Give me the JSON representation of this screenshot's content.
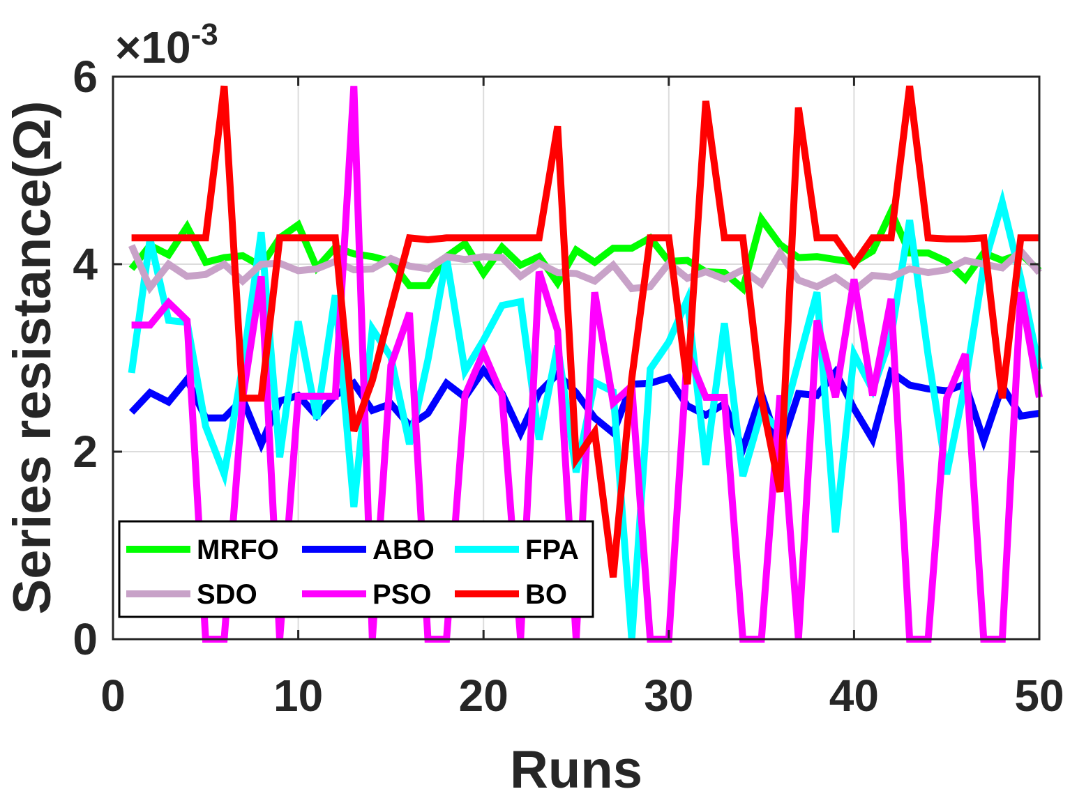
{
  "chart_data": {
    "type": "line",
    "title": "",
    "xlabel": "Runs",
    "ylabel": "Series resistance(Ω)",
    "exponent_label": "×10",
    "exponent_power": "-3",
    "xlim": [
      0,
      50
    ],
    "ylim": [
      0,
      6
    ],
    "xticks": [
      0,
      10,
      20,
      30,
      40,
      50
    ],
    "yticks": [
      0,
      2,
      4,
      6
    ],
    "xtick_labels": [
      "0",
      "10",
      "20",
      "30",
      "40",
      "50"
    ],
    "ytick_labels": [
      "0",
      "2",
      "4",
      "6"
    ],
    "grid": true,
    "legend_position": "bottom-left",
    "x": [
      1,
      2,
      3,
      4,
      5,
      6,
      7,
      8,
      9,
      10,
      11,
      12,
      13,
      14,
      15,
      16,
      17,
      18,
      19,
      20,
      21,
      22,
      23,
      24,
      25,
      26,
      27,
      28,
      29,
      30,
      31,
      32,
      33,
      34,
      35,
      36,
      37,
      38,
      39,
      40,
      41,
      42,
      43,
      44,
      45,
      46,
      47,
      48,
      49,
      50
    ],
    "series": [
      {
        "name": "MRFO",
        "color": "#00ff00",
        "values": [
          3.95,
          4.2,
          4.1,
          4.4,
          4.02,
          4.07,
          4.09,
          3.98,
          4.28,
          4.42,
          3.96,
          4.18,
          4.11,
          4.08,
          4.03,
          3.77,
          3.77,
          4.08,
          4.22,
          3.9,
          4.18,
          3.99,
          4.08,
          3.8,
          4.15,
          4.02,
          4.17,
          4.17,
          4.28,
          4.03,
          4.04,
          3.92,
          3.91,
          3.74,
          4.48,
          4.21,
          4.07,
          4.08,
          4.05,
          4.02,
          4.14,
          4.56,
          4.12,
          4.12,
          4.03,
          3.84,
          4.12,
          4.04,
          4.11,
          3.93
        ]
      },
      {
        "name": "ABO",
        "color": "#0000ff",
        "values": [
          2.42,
          2.63,
          2.53,
          2.77,
          2.36,
          2.36,
          2.56,
          2.08,
          2.54,
          2.6,
          2.38,
          2.6,
          2.73,
          2.44,
          2.51,
          2.28,
          2.41,
          2.73,
          2.58,
          2.87,
          2.62,
          2.2,
          2.63,
          2.83,
          2.63,
          2.36,
          2.2,
          2.72,
          2.73,
          2.79,
          2.49,
          2.39,
          2.51,
          2.03,
          2.62,
          2.02,
          2.62,
          2.6,
          2.85,
          2.46,
          2.13,
          2.85,
          2.71,
          2.67,
          2.65,
          2.72,
          2.12,
          2.7,
          2.38,
          2.41
        ]
      },
      {
        "name": "FPA",
        "color": "#00ffff",
        "values": [
          2.84,
          4.27,
          3.4,
          3.38,
          2.27,
          1.76,
          2.91,
          4.34,
          1.94,
          3.39,
          2.35,
          3.67,
          1.41,
          3.31,
          3.01,
          2.08,
          2.98,
          4.07,
          2.86,
          3.19,
          3.56,
          3.6,
          2.13,
          3.13,
          1.78,
          2.74,
          2.64,
          0.0,
          2.88,
          3.17,
          3.62,
          1.86,
          3.37,
          1.74,
          2.43,
          2.22,
          2.96,
          3.7,
          1.14,
          3.04,
          2.66,
          3.23,
          4.47,
          3.03,
          1.76,
          2.73,
          3.98,
          4.66,
          3.85,
          2.88
        ]
      },
      {
        "name": "SDO",
        "color": "#c8a2c8",
        "values": [
          4.2,
          3.75,
          4.0,
          3.87,
          3.89,
          4.0,
          3.82,
          4.0,
          4.01,
          3.93,
          3.95,
          4.03,
          3.94,
          3.95,
          4.06,
          3.98,
          3.95,
          4.08,
          4.05,
          4.08,
          4.07,
          3.87,
          4.01,
          3.91,
          3.9,
          3.82,
          3.99,
          3.74,
          3.76,
          4.01,
          3.85,
          3.92,
          3.84,
          3.94,
          3.79,
          4.12,
          3.83,
          3.76,
          3.86,
          3.72,
          3.88,
          3.86,
          3.95,
          3.91,
          3.94,
          4.04,
          4.0,
          3.96,
          4.14,
          3.91
        ]
      },
      {
        "name": "PSO",
        "color": "#ff00ff",
        "values": [
          3.35,
          3.35,
          3.59,
          3.4,
          0.0,
          0.0,
          2.57,
          3.87,
          0.0,
          2.59,
          2.59,
          2.59,
          5.9,
          0.0,
          2.92,
          3.48,
          0.0,
          0.0,
          2.6,
          3.06,
          2.6,
          0.0,
          3.92,
          3.29,
          0.0,
          3.7,
          2.52,
          2.7,
          0.0,
          0.0,
          3.06,
          2.58,
          2.58,
          0.0,
          0.0,
          2.6,
          0.0,
          3.4,
          2.58,
          3.84,
          2.6,
          3.63,
          0.0,
          0.0,
          2.57,
          3.04,
          0.0,
          0.0,
          3.7,
          2.58
        ]
      },
      {
        "name": "BO",
        "color": "#ff0000",
        "values": [
          4.28,
          4.28,
          4.28,
          4.28,
          4.28,
          5.9,
          2.57,
          2.57,
          4.28,
          4.28,
          4.28,
          4.28,
          2.22,
          2.76,
          3.53,
          4.28,
          4.26,
          4.28,
          4.28,
          4.28,
          4.28,
          4.28,
          4.28,
          5.47,
          1.92,
          2.21,
          0.66,
          2.78,
          4.28,
          4.28,
          2.72,
          5.74,
          4.28,
          4.28,
          2.57,
          1.57,
          5.67,
          4.28,
          4.28,
          4.0,
          4.28,
          4.28,
          5.9,
          4.28,
          4.27,
          4.27,
          4.28,
          2.57,
          4.28,
          4.28
        ]
      }
    ]
  }
}
